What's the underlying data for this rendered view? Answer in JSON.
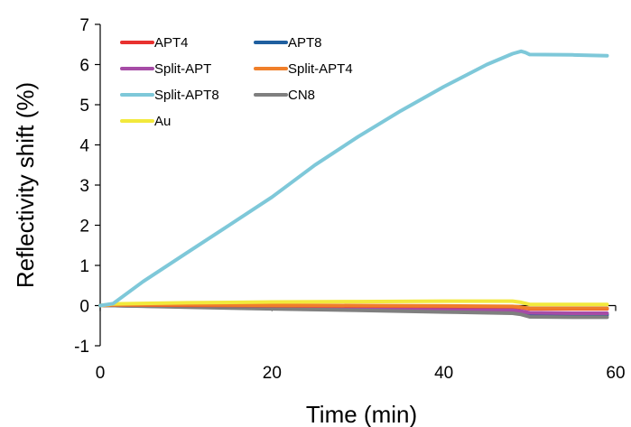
{
  "chart_data": {
    "type": "line",
    "title": "",
    "xlabel": "Time (min)",
    "ylabel": "Reflectivity shift (%)",
    "xlim": [
      0,
      60
    ],
    "ylim": [
      -1,
      7
    ],
    "xticks": [
      0,
      20,
      40,
      60
    ],
    "yticks": [
      -1,
      0,
      1,
      2,
      3,
      4,
      5,
      6,
      7
    ],
    "grid": false,
    "legend_position": "top-left",
    "series": [
      {
        "name": "APT4",
        "color": "#e8312f",
        "x": [
          0,
          1.5,
          10,
          20,
          30,
          40,
          48,
          49,
          50,
          55,
          59
        ],
        "y": [
          0,
          0.02,
          0.01,
          0.0,
          -0.01,
          -0.02,
          -0.03,
          -0.05,
          -0.08,
          -0.08,
          -0.08
        ]
      },
      {
        "name": "APT8",
        "color": "#1f5f9f",
        "x": [
          0,
          1.5,
          10,
          20,
          30,
          40,
          48,
          49,
          50,
          55,
          59
        ],
        "y": [
          0,
          0.0,
          -0.03,
          -0.06,
          -0.09,
          -0.12,
          -0.14,
          -0.17,
          -0.22,
          -0.23,
          -0.23
        ]
      },
      {
        "name": "Split-APT",
        "color": "#a64ca6",
        "x": [
          0,
          1.5,
          10,
          20,
          30,
          40,
          48,
          49,
          50,
          55,
          59
        ],
        "y": [
          0,
          0.0,
          -0.02,
          -0.05,
          -0.07,
          -0.09,
          -0.11,
          -0.14,
          -0.18,
          -0.19,
          -0.19
        ]
      },
      {
        "name": "Split-APT4",
        "color": "#f07f2a",
        "x": [
          0,
          1.5,
          10,
          20,
          30,
          40,
          48,
          49,
          50,
          55,
          59
        ],
        "y": [
          0,
          0.02,
          0.02,
          0.01,
          0.0,
          -0.01,
          -0.02,
          -0.04,
          -0.07,
          -0.07,
          -0.07
        ]
      },
      {
        "name": "Split-APT8",
        "color": "#7ec8d9",
        "x": [
          0,
          1.5,
          5,
          10,
          15,
          20,
          25,
          30,
          35,
          40,
          45,
          48,
          49,
          49.5,
          50,
          55,
          59
        ],
        "y": [
          0,
          0.05,
          0.6,
          1.3,
          2.0,
          2.7,
          3.5,
          4.2,
          4.85,
          5.45,
          6.0,
          6.27,
          6.33,
          6.3,
          6.25,
          6.24,
          6.22
        ]
      },
      {
        "name": "CN8",
        "color": "#7f7f7f",
        "x": [
          0,
          1.5,
          10,
          20,
          30,
          40,
          48,
          49,
          50,
          55,
          59
        ],
        "y": [
          0,
          0.0,
          -0.04,
          -0.08,
          -0.12,
          -0.16,
          -0.19,
          -0.22,
          -0.28,
          -0.29,
          -0.29
        ]
      },
      {
        "name": "Au",
        "color": "#f2e93c",
        "x": [
          0,
          1.5,
          10,
          20,
          30,
          40,
          48,
          49,
          50,
          55,
          59
        ],
        "y": [
          0,
          0.04,
          0.07,
          0.09,
          0.1,
          0.11,
          0.11,
          0.08,
          0.03,
          0.03,
          0.03
        ]
      }
    ]
  }
}
